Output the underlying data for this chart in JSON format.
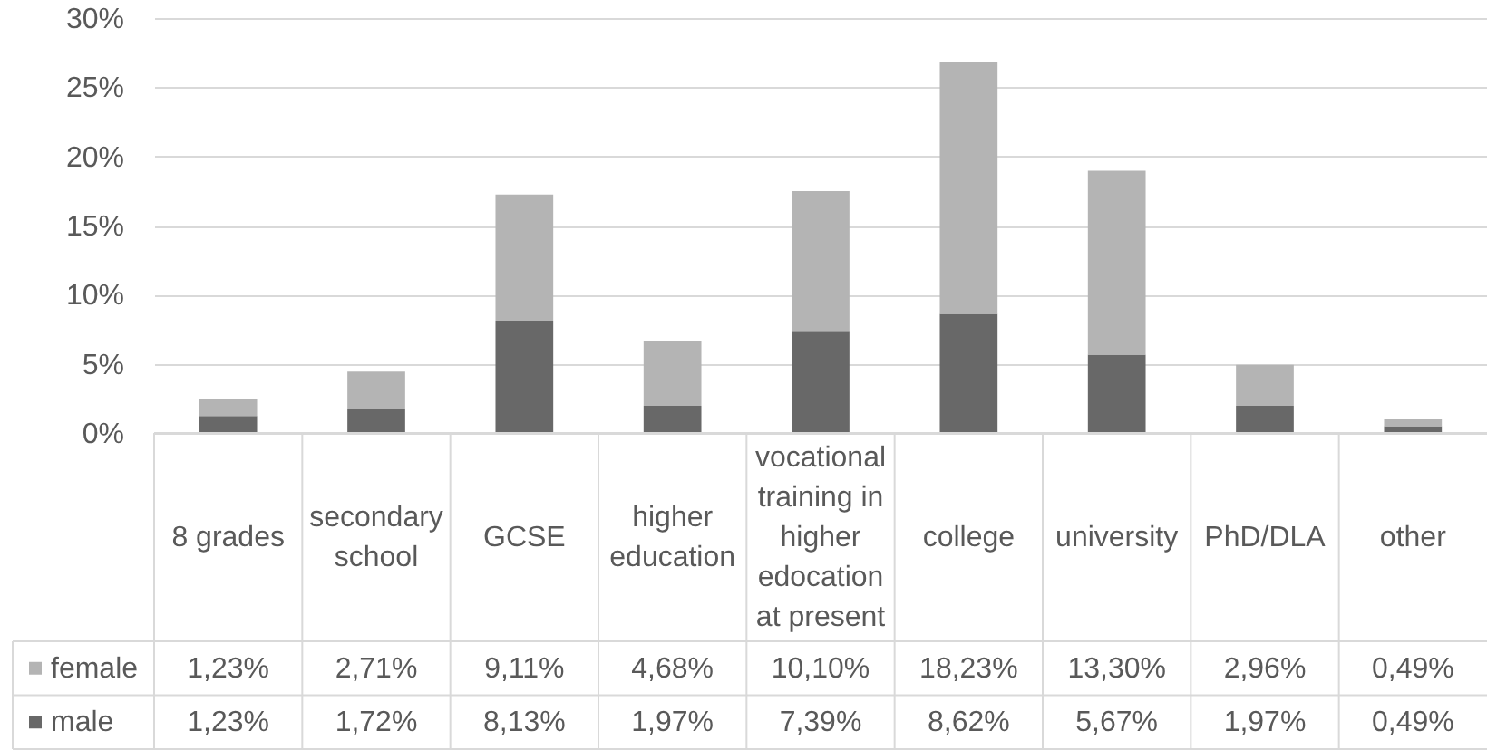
{
  "chart_data": {
    "type": "bar",
    "stacked": true,
    "categories": [
      "8 grades",
      "secondary school",
      "GCSE",
      "higher education",
      "vocational training in higher edocation at present",
      "college",
      "university",
      "PhD/DLA",
      "other"
    ],
    "series": [
      {
        "name": "male",
        "color": "#686868",
        "values": [
          1.23,
          1.72,
          8.13,
          1.97,
          7.39,
          8.62,
          5.67,
          1.97,
          0.49
        ],
        "value_labels": [
          "1,23%",
          "1,72%",
          "8,13%",
          "1,97%",
          "7,39%",
          "8,62%",
          "5,67%",
          "1,97%",
          "0,49%"
        ]
      },
      {
        "name": "female",
        "color": "#b4b4b4",
        "values": [
          1.23,
          2.71,
          9.11,
          4.68,
          10.1,
          18.23,
          13.3,
          2.96,
          0.49
        ],
        "value_labels": [
          "1,23%",
          "2,71%",
          "9,11%",
          "4,68%",
          "10,10%",
          "18,23%",
          "13,30%",
          "2,96%",
          "0,49%"
        ]
      }
    ],
    "ylim": [
      0,
      30
    ],
    "yticks": [
      {
        "value": 0,
        "label": "0%"
      },
      {
        "value": 5,
        "label": "5%"
      },
      {
        "value": 10,
        "label": "10%"
      },
      {
        "value": 15,
        "label": "15%"
      },
      {
        "value": 20,
        "label": "20%"
      },
      {
        "value": 25,
        "label": "25%"
      },
      {
        "value": 30,
        "label": "30%"
      }
    ],
    "grid": "y",
    "legend": "bottom"
  }
}
